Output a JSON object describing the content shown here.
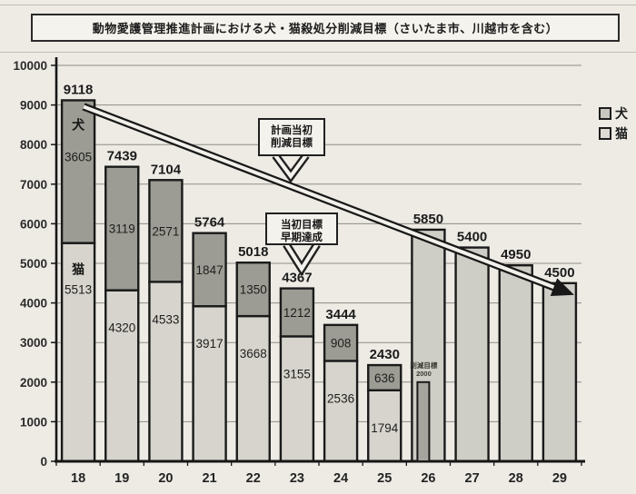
{
  "title": "動物愛護管理推進計画における犬・猫殺処分削減目標（さいたま市、川越市を含む）",
  "legend": {
    "items": [
      {
        "label": "犬",
        "color": "#9c9c94"
      },
      {
        "label": "猫",
        "color": "#d6d4cc"
      }
    ]
  },
  "colors": {
    "background": "#edebe4",
    "bar_border": "#1a1a1a",
    "dog_fill": "#9c9c94",
    "cat_fill": "#d6d4cc",
    "target_fill": "#cfcec6",
    "sub_bar_fill": "#a6a59d",
    "grid": "#8f8d86",
    "axis": "#161616",
    "text": "#242424",
    "callout_fill": "#f4f2ec",
    "arrow_core": "#f2f0ea"
  },
  "chart_data": {
    "type": "bar",
    "stacked": true,
    "title": "動物愛護管理推進計画における犬・猫殺処分削減目標（さいたま市、川越市を含む）",
    "categories": [
      "18",
      "19",
      "20",
      "21",
      "22",
      "23",
      "24",
      "25",
      "26",
      "27",
      "28",
      "29"
    ],
    "xlabel": "",
    "ylabel": "",
    "ylim": [
      0,
      10000
    ],
    "ytick_step": 1000,
    "grid": true,
    "legend_position": "right",
    "legend_entries": [
      "犬",
      "猫"
    ],
    "series": [
      {
        "name": "猫",
        "stack_order": "bottom",
        "values": [
          5513,
          4320,
          4533,
          3917,
          3668,
          3155,
          2536,
          1794,
          null,
          null,
          null,
          null
        ]
      },
      {
        "name": "犬",
        "stack_order": "top",
        "values": [
          3605,
          3119,
          2571,
          1847,
          1350,
          1212,
          908,
          636,
          null,
          null,
          null,
          null
        ]
      }
    ],
    "totals": [
      9118,
      7439,
      7104,
      5764,
      5018,
      4367,
      3444,
      2430,
      5850,
      5400,
      4950,
      4500
    ],
    "target_bars": {
      "categories": [
        "26",
        "27",
        "28",
        "29"
      ],
      "values": [
        5850,
        5400,
        4950,
        4500
      ]
    },
    "sub_bar": {
      "category": "26",
      "value": 2000,
      "label_lines": [
        "削減目標",
        "2000"
      ]
    },
    "segment_name_labels": {
      "category": "18",
      "dog": "犬",
      "cat": "猫"
    },
    "target_line": {
      "from_category": "18",
      "from_value": 9118,
      "to_category": "29",
      "to_value": 4500,
      "style": "double-outline-arrow"
    },
    "annotations": [
      {
        "label_lines": [
          "計画当初",
          "削減目標"
        ],
        "points_to": "target_line"
      },
      {
        "label_lines": [
          "当初目標",
          "早期達成"
        ],
        "points_to_category": "23"
      }
    ]
  }
}
